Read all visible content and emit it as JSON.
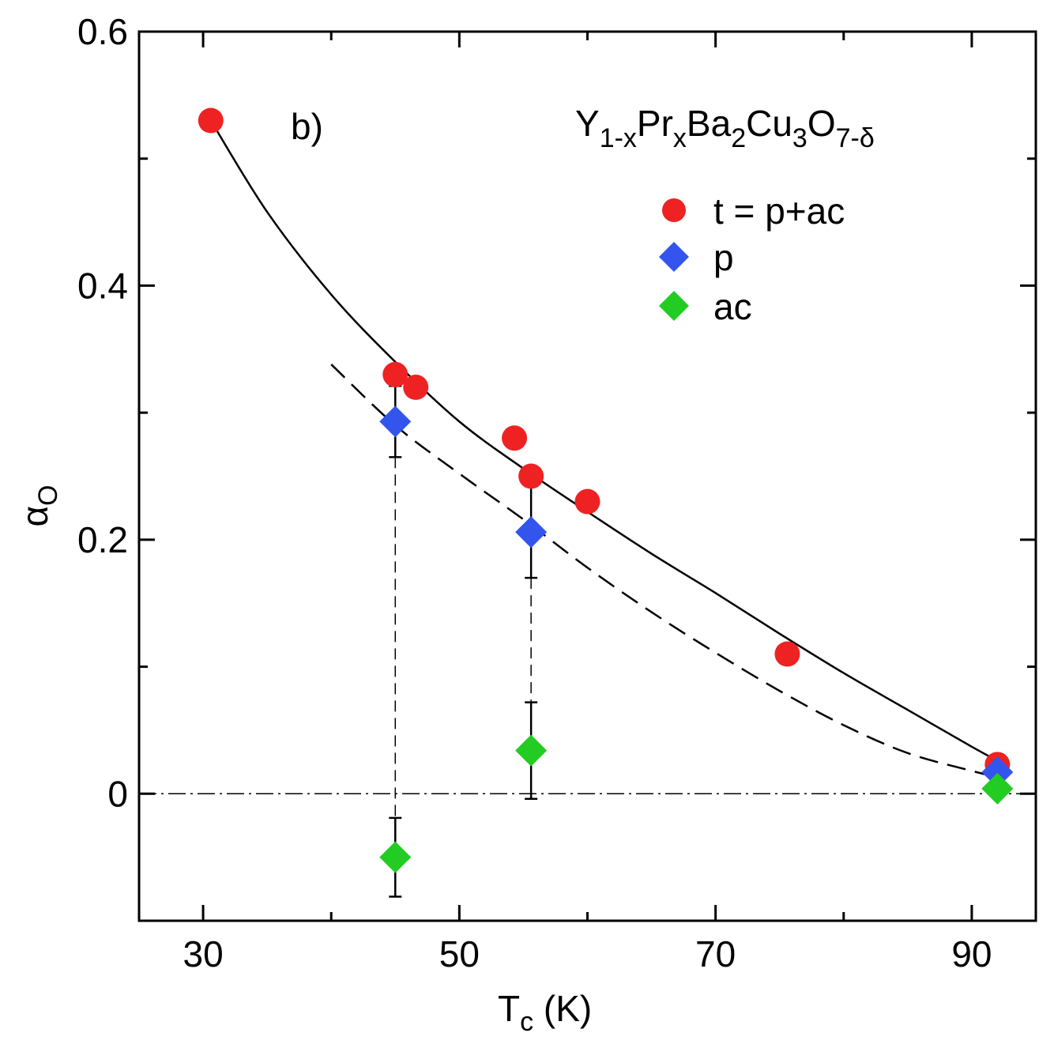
{
  "chart_data": {
    "type": "scatter",
    "panel_label": "b)",
    "compound": {
      "Y": "Y",
      "x1": "1-x",
      "Pr": "Pr",
      "x2": "x",
      "Ba": "Ba",
      "n_Ba": "2",
      "Cu": "Cu",
      "n_Cu": "3",
      "O": "O",
      "n_O": "7-δ"
    },
    "xlabel": {
      "main": "T",
      "sub": "c",
      "unit": " (K)"
    },
    "ylabel": {
      "main": "α",
      "sub": "O"
    },
    "xlim": [
      25,
      95
    ],
    "ylim": [
      -0.1,
      0.6
    ],
    "xticks": [
      30,
      50,
      70,
      90
    ],
    "xtick_labels": [
      "30",
      "50",
      "70",
      "90"
    ],
    "xticks_minor": [
      40,
      60,
      80
    ],
    "yticks": [
      0,
      0.2,
      0.4,
      0.6
    ],
    "ytick_labels": [
      "0",
      "0.2",
      "0.4",
      "0.6"
    ],
    "yticks_minor": [
      0.1,
      0.3,
      0.5
    ],
    "grid": false,
    "legend_position": "top-right",
    "colors": {
      "t": "#ee2222",
      "p": "#3355ee",
      "ac": "#22cc22",
      "line": "#000000"
    },
    "series": [
      {
        "name": "t = p+ac",
        "marker": "circle",
        "x": [
          30.6,
          45.0,
          46.6,
          54.3,
          55.6,
          60.0,
          75.6,
          92.0
        ],
        "y": [
          0.53,
          0.33,
          0.32,
          0.28,
          0.25,
          0.23,
          0.11,
          0.023
        ]
      },
      {
        "name": "p",
        "marker": "diamond",
        "x": [
          45.0,
          55.6,
          92.0
        ],
        "y": [
          0.293,
          0.206,
          0.017
        ],
        "err": [
          0.028,
          0.036,
          0
        ]
      },
      {
        "name": "ac",
        "marker": "diamond",
        "x": [
          45.0,
          55.6,
          92.0
        ],
        "y": [
          -0.05,
          0.034,
          0.004
        ],
        "err": [
          0.031,
          0.038,
          0
        ]
      }
    ],
    "fit_solid": {
      "x": [
        30.6,
        35,
        40,
        45,
        50,
        55,
        60,
        65,
        70,
        75,
        80,
        85,
        90,
        92
      ],
      "y": [
        0.53,
        0.458,
        0.393,
        0.34,
        0.293,
        0.256,
        0.222,
        0.189,
        0.158,
        0.126,
        0.095,
        0.066,
        0.037,
        0.026
      ]
    },
    "fit_dashed": {
      "x": [
        40,
        45,
        50,
        55,
        60,
        65,
        70,
        75,
        80,
        85,
        90,
        92
      ],
      "y": [
        0.338,
        0.29,
        0.252,
        0.216,
        0.178,
        0.143,
        0.111,
        0.081,
        0.054,
        0.032,
        0.018,
        0.013
      ]
    },
    "drop_lines_x": [
      45.0,
      55.6
    ],
    "zero_line": 0
  }
}
